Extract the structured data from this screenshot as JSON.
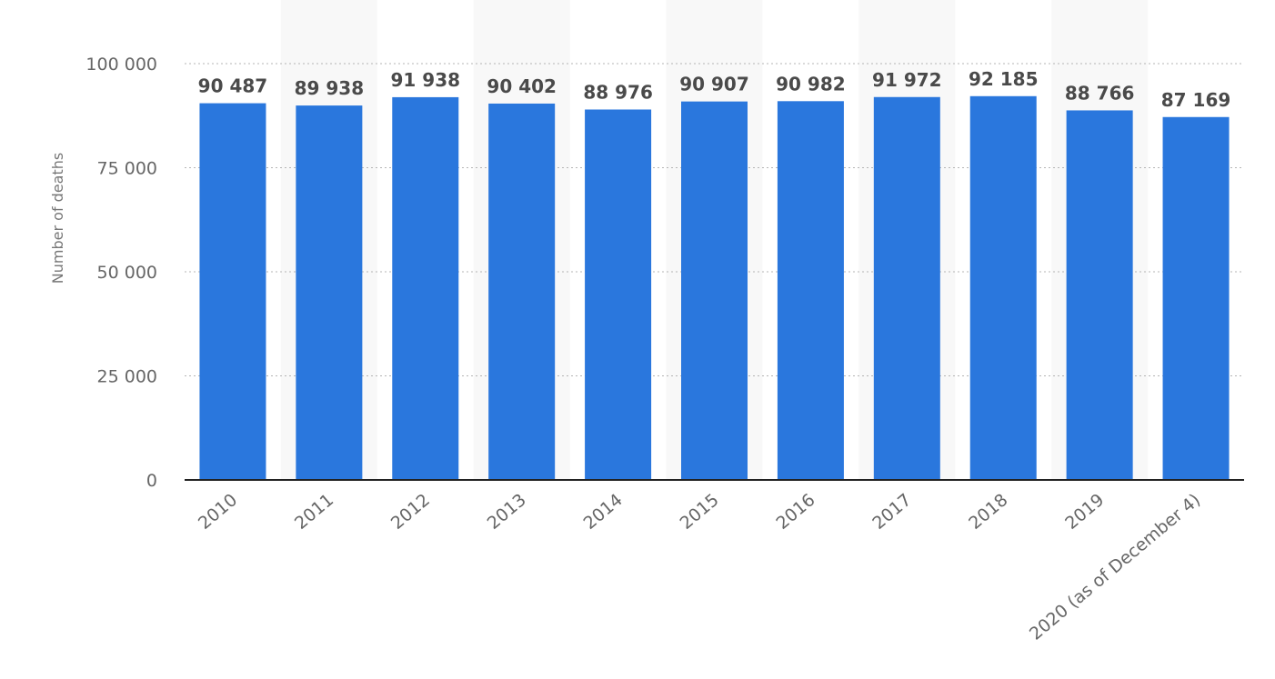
{
  "chart_data": {
    "type": "bar",
    "title": "",
    "xlabel": "",
    "ylabel": "Number of deaths",
    "ylim": [
      0,
      100000
    ],
    "yticks": [
      0,
      25000,
      50000,
      75000,
      100000
    ],
    "ytick_labels": [
      "0",
      "25 000",
      "50 000",
      "75 000",
      "100 000"
    ],
    "grid": "horizontal-dotted",
    "legend": "none",
    "bar_color": "#2a77dd",
    "categories": [
      "2010",
      "2011",
      "2012",
      "2013",
      "2014",
      "2015",
      "2016",
      "2017",
      "2018",
      "2019",
      "2020 (as of December 4)"
    ],
    "values": [
      90487,
      89938,
      91938,
      90402,
      88976,
      90907,
      90982,
      91972,
      92185,
      88766,
      87169
    ],
    "value_labels": [
      "90 487",
      "89 938",
      "91 938",
      "90 402",
      "88 976",
      "90 907",
      "90 982",
      "91 972",
      "92 185",
      "88 766",
      "87 169"
    ]
  }
}
